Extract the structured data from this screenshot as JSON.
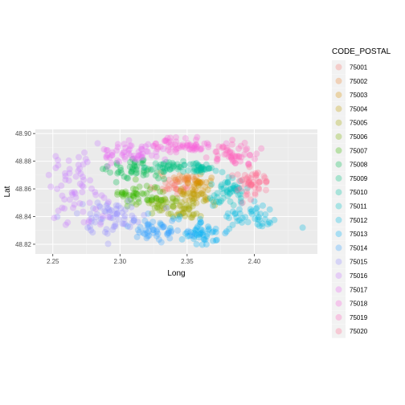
{
  "chart_data": {
    "type": "scatter",
    "title": "",
    "xlabel": "Long",
    "ylabel": "Lat",
    "xlim": [
      2.237,
      2.447
    ],
    "ylim": [
      48.813,
      48.903
    ],
    "x_ticks": [
      2.25,
      2.3,
      2.35,
      2.4
    ],
    "x_tick_labels": [
      "2.25",
      "2.30",
      "2.35",
      "2.40"
    ],
    "y_ticks": [
      48.82,
      48.84,
      48.86,
      48.88,
      48.9
    ],
    "y_tick_labels": [
      "48.82",
      "48.84",
      "48.86",
      "48.88",
      "48.90"
    ],
    "grid": true,
    "legend_position": "right",
    "legend_title": "CODE_POSTAL",
    "point_alpha": 0.3,
    "series": [
      {
        "name": "75001",
        "color": "#F8766D",
        "center": [
          2.34,
          48.862
        ],
        "spread": [
          0.008,
          0.003
        ],
        "count": 28
      },
      {
        "name": "75002",
        "color": "#EA8331",
        "center": [
          2.345,
          48.868
        ],
        "spread": [
          0.006,
          0.002
        ],
        "count": 22
      },
      {
        "name": "75003",
        "color": "#D89000",
        "center": [
          2.36,
          48.863
        ],
        "spread": [
          0.004,
          0.003
        ],
        "count": 24
      },
      {
        "name": "75004",
        "color": "#C09B00",
        "center": [
          2.355,
          48.856
        ],
        "spread": [
          0.008,
          0.003
        ],
        "count": 32
      },
      {
        "name": "75005",
        "color": "#A3A500",
        "center": [
          2.348,
          48.845
        ],
        "spread": [
          0.007,
          0.004
        ],
        "count": 36
      },
      {
        "name": "75006",
        "color": "#7CAE00",
        "center": [
          2.332,
          48.85
        ],
        "spread": [
          0.007,
          0.003
        ],
        "count": 36
      },
      {
        "name": "75007",
        "color": "#39B600",
        "center": [
          2.313,
          48.856
        ],
        "spread": [
          0.01,
          0.004
        ],
        "count": 42
      },
      {
        "name": "75008",
        "color": "#00BB4E",
        "center": [
          2.312,
          48.874
        ],
        "spread": [
          0.01,
          0.004
        ],
        "count": 46
      },
      {
        "name": "75009",
        "color": "#00BF7D",
        "center": [
          2.338,
          48.876
        ],
        "spread": [
          0.008,
          0.002
        ],
        "count": 36
      },
      {
        "name": "75010",
        "color": "#00C1A3",
        "center": [
          2.36,
          48.875
        ],
        "spread": [
          0.005,
          0.003
        ],
        "count": 32
      },
      {
        "name": "75011",
        "color": "#00BFC4",
        "center": [
          2.38,
          48.859
        ],
        "spread": [
          0.008,
          0.005
        ],
        "count": 52
      },
      {
        "name": "75012",
        "color": "#00BAE0",
        "center": [
          2.4,
          48.84
        ],
        "spread": [
          0.012,
          0.005
        ],
        "count": 44
      },
      {
        "name": "75013",
        "color": "#00B0F6",
        "center": [
          2.36,
          48.829
        ],
        "spread": [
          0.011,
          0.005
        ],
        "count": 52
      },
      {
        "name": "75014",
        "color": "#35A2FF",
        "center": [
          2.327,
          48.83
        ],
        "spread": [
          0.009,
          0.004
        ],
        "count": 48
      },
      {
        "name": "75015",
        "color": "#9590FF",
        "center": [
          2.294,
          48.84
        ],
        "spread": [
          0.014,
          0.006
        ],
        "count": 64
      },
      {
        "name": "75016",
        "color": "#C77CFF",
        "center": [
          2.268,
          48.86
        ],
        "spread": [
          0.011,
          0.013
        ],
        "count": 62
      },
      {
        "name": "75017",
        "color": "#E76BF3",
        "center": [
          2.308,
          48.886
        ],
        "spread": [
          0.011,
          0.004
        ],
        "count": 56
      },
      {
        "name": "75018",
        "color": "#FA62DB",
        "center": [
          2.348,
          48.892
        ],
        "spread": [
          0.011,
          0.003
        ],
        "count": 60
      },
      {
        "name": "75019",
        "color": "#FF62BC",
        "center": [
          2.385,
          48.885
        ],
        "spread": [
          0.009,
          0.004
        ],
        "count": 52
      },
      {
        "name": "75020",
        "color": "#FF6C91",
        "center": [
          2.398,
          48.864
        ],
        "spread": [
          0.007,
          0.005
        ],
        "count": 50
      }
    ],
    "outliers": [
      {
        "series": "75016",
        "x": 2.247,
        "y": 48.87
      },
      {
        "series": "75016",
        "x": 2.251,
        "y": 48.839
      },
      {
        "series": "75012",
        "x": 2.436,
        "y": 48.832
      },
      {
        "series": "75016",
        "x": 2.262,
        "y": 48.866
      },
      {
        "series": "75015",
        "x": 2.276,
        "y": 48.832
      }
    ]
  }
}
